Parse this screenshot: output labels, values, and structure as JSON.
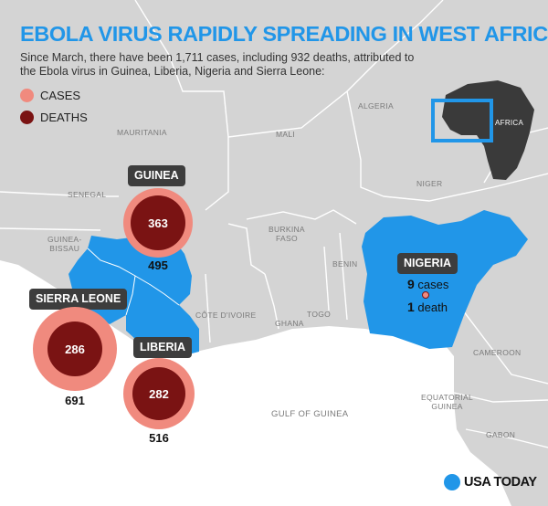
{
  "title": "EBOLA VIRUS RAPIDLY SPREADING IN WEST AFRICA",
  "subtitle": "Since March, there have been 1,711 cases, including 932 deaths, attributed to the Ebola virus in Guinea, Liberia, Nigeria and Sierra Leone:",
  "legend": {
    "cases_label": "CASES",
    "deaths_label": "DEATHS",
    "cases_color": "#f08a7e",
    "deaths_color": "#7a1313"
  },
  "colors": {
    "affected": "#2196e8",
    "land": "#d4d4d4",
    "sea": "#ffffff",
    "inset_africa": "#3a3a3a"
  },
  "regions": {
    "algeria": "ALGERIA",
    "mauritania": "MAURITANIA",
    "mali": "MALI",
    "niger": "NIGER",
    "senegal": "SENEGAL",
    "guinea_bissau": "GUINEA-\nBISSAU",
    "burkina_faso": "BURKINA\nFASO",
    "benin": "BENIN",
    "cote_divoire": "CÔTE D'IVOIRE",
    "ghana": "GHANA",
    "togo": "TOGO",
    "cameroon": "CAMEROON",
    "equatorial_guinea": "EQUATORIAL\nGUINEA",
    "gabon": "GABON",
    "gulf_of_guinea": "GULF OF GUINEA",
    "africa_inset": "AFRICA"
  },
  "countries": {
    "guinea": {
      "name": "GUINEA",
      "deaths": "363",
      "cases": "495"
    },
    "sierra_leone": {
      "name": "SIERRA LEONE",
      "deaths": "286",
      "cases": "691"
    },
    "liberia": {
      "name": "LIBERIA",
      "deaths": "282",
      "cases": "516"
    },
    "nigeria": {
      "name": "NIGERIA",
      "cases_number": "9",
      "cases_word": "cases",
      "deaths_number": "1",
      "deaths_word": "death"
    }
  },
  "brand": "USA TODAY"
}
